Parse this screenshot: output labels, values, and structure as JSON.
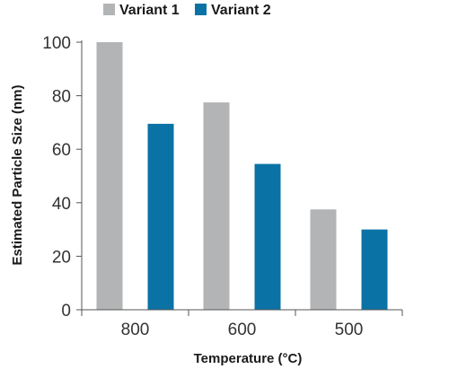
{
  "chart_data": {
    "type": "bar",
    "categories": [
      "800",
      "600",
      "500"
    ],
    "series": [
      {
        "name": "Variant 1",
        "values": [
          100,
          77.5,
          37.5
        ],
        "color": "#b2b4b6"
      },
      {
        "name": "Variant 2",
        "values": [
          69.5,
          54.5,
          30
        ],
        "color": "#0b72a6"
      }
    ],
    "xlabel": "Temperature (°C)",
    "ylabel": "Estimated Particle Size (nm)",
    "ylim": [
      0,
      100
    ],
    "yticks": [
      0,
      20,
      40,
      60,
      80,
      100
    ],
    "ytick_labels": [
      "0",
      "20",
      "40",
      "60",
      "80",
      "100"
    ],
    "grid": false,
    "legend_position": "top"
  }
}
